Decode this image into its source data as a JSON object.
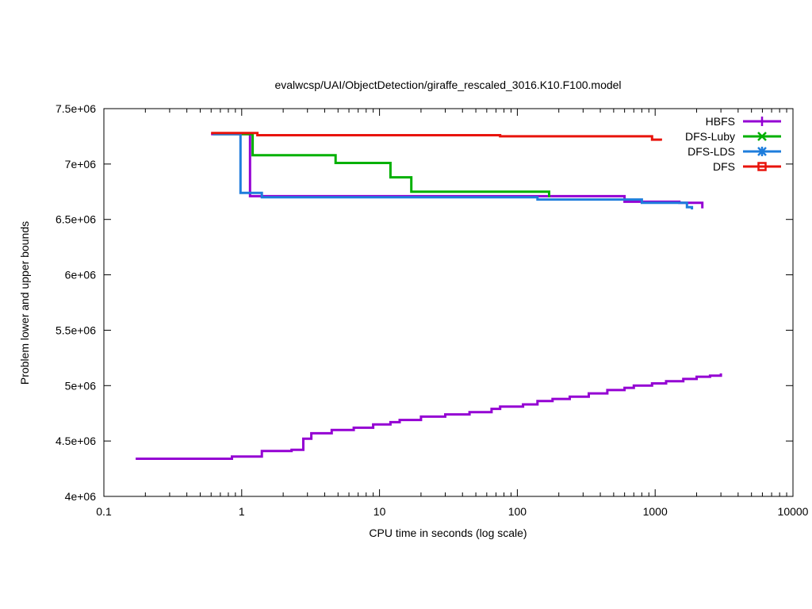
{
  "chart_data": {
    "type": "line",
    "title": "evalwcsp/UAI/ObjectDetection/giraffe_rescaled_3016.K10.F100.model",
    "xlabel": "CPU time in seconds (log scale)",
    "ylabel": "Problem lower and upper bounds",
    "x_scale": "log",
    "xlim": [
      0.1,
      10000
    ],
    "ylim": [
      4000000,
      7500000
    ],
    "x_ticks": [
      0.1,
      1,
      10,
      100,
      1000,
      10000
    ],
    "x_tick_labels": [
      "0.1",
      "1",
      "10",
      "100",
      "1000",
      "10000"
    ],
    "y_ticks": [
      4000000,
      4500000,
      5000000,
      5500000,
      6000000,
      6500000,
      7000000,
      7500000
    ],
    "y_tick_labels": [
      "4e+06",
      "4.5e+06",
      "5e+06",
      "5.5e+06",
      "6e+06",
      "6.5e+06",
      "7e+06",
      "7.5e+06"
    ],
    "grid": false,
    "legend_position": "top-right",
    "series": [
      {
        "name": "HBFS",
        "color": "#9400d3",
        "marker": "plus",
        "step": true,
        "segments": [
          [
            [
              0.6,
              7270000
            ],
            [
              1.15,
              7270000
            ],
            [
              1.15,
              6710000
            ],
            [
              600,
              6710000
            ],
            [
              600,
              6660000
            ],
            [
              1500,
              6660000
            ],
            [
              1500,
              6650000
            ],
            [
              2200,
              6650000
            ],
            [
              2200,
              6600000
            ]
          ],
          [
            [
              0.17,
              4340000
            ],
            [
              0.85,
              4340000
            ],
            [
              0.85,
              4360000
            ],
            [
              1.4,
              4360000
            ],
            [
              1.4,
              4410000
            ],
            [
              2.3,
              4410000
            ],
            [
              2.3,
              4420000
            ],
            [
              2.8,
              4420000
            ],
            [
              2.8,
              4520000
            ],
            [
              3.2,
              4520000
            ],
            [
              3.2,
              4570000
            ],
            [
              4.5,
              4570000
            ],
            [
              4.5,
              4600000
            ],
            [
              6.5,
              4600000
            ],
            [
              6.5,
              4620000
            ],
            [
              9,
              4620000
            ],
            [
              9,
              4650000
            ],
            [
              12,
              4650000
            ],
            [
              12,
              4670000
            ],
            [
              14,
              4670000
            ],
            [
              14,
              4690000
            ],
            [
              20,
              4690000
            ],
            [
              20,
              4720000
            ],
            [
              30,
              4720000
            ],
            [
              30,
              4740000
            ],
            [
              45,
              4740000
            ],
            [
              45,
              4760000
            ],
            [
              65,
              4760000
            ],
            [
              65,
              4790000
            ],
            [
              75,
              4790000
            ],
            [
              75,
              4810000
            ],
            [
              110,
              4810000
            ],
            [
              110,
              4830000
            ],
            [
              140,
              4830000
            ],
            [
              140,
              4860000
            ],
            [
              180,
              4860000
            ],
            [
              180,
              4880000
            ],
            [
              240,
              4880000
            ],
            [
              240,
              4900000
            ],
            [
              330,
              4900000
            ],
            [
              330,
              4930000
            ],
            [
              450,
              4930000
            ],
            [
              450,
              4960000
            ],
            [
              600,
              4960000
            ],
            [
              600,
              4980000
            ],
            [
              700,
              4980000
            ],
            [
              700,
              5000000
            ],
            [
              950,
              5000000
            ],
            [
              950,
              5020000
            ],
            [
              1200,
              5020000
            ],
            [
              1200,
              5040000
            ],
            [
              1600,
              5040000
            ],
            [
              1600,
              5060000
            ],
            [
              2000,
              5060000
            ],
            [
              2000,
              5080000
            ],
            [
              2500,
              5080000
            ],
            [
              2500,
              5090000
            ],
            [
              3000,
              5090000
            ],
            [
              3000,
              5110000
            ]
          ]
        ]
      },
      {
        "name": "DFS-Luby",
        "color": "#00b000",
        "marker": "x",
        "step": true,
        "segments": [
          [
            [
              0.62,
              7270000
            ],
            [
              1.2,
              7270000
            ],
            [
              1.2,
              7080000
            ],
            [
              4.8,
              7080000
            ],
            [
              4.8,
              7010000
            ],
            [
              12,
              7010000
            ],
            [
              12,
              6880000
            ],
            [
              17,
              6880000
            ],
            [
              17,
              6750000
            ],
            [
              170,
              6750000
            ],
            [
              170,
              6700000
            ]
          ]
        ]
      },
      {
        "name": "DFS-LDS",
        "color": "#1e7ddc",
        "marker": "star",
        "step": true,
        "segments": [
          [
            [
              0.62,
              7270000
            ],
            [
              0.98,
              7270000
            ],
            [
              0.98,
              6740000
            ],
            [
              1.4,
              6740000
            ],
            [
              1.4,
              6700000
            ],
            [
              140,
              6700000
            ],
            [
              140,
              6680000
            ],
            [
              800,
              6680000
            ],
            [
              800,
              6650000
            ],
            [
              1700,
              6650000
            ],
            [
              1700,
              6610000
            ],
            [
              1850,
              6610000
            ],
            [
              1850,
              6590000
            ]
          ]
        ]
      },
      {
        "name": "DFS",
        "color": "#e8140c",
        "marker": "square",
        "step": true,
        "segments": [
          [
            [
              0.6,
              7280000
            ],
            [
              1.3,
              7280000
            ],
            [
              1.3,
              7260000
            ],
            [
              75,
              7260000
            ],
            [
              75,
              7250000
            ],
            [
              950,
              7250000
            ],
            [
              950,
              7220000
            ],
            [
              1100,
              7220000
            ],
            [
              1100,
              7210000
            ]
          ]
        ]
      }
    ]
  }
}
